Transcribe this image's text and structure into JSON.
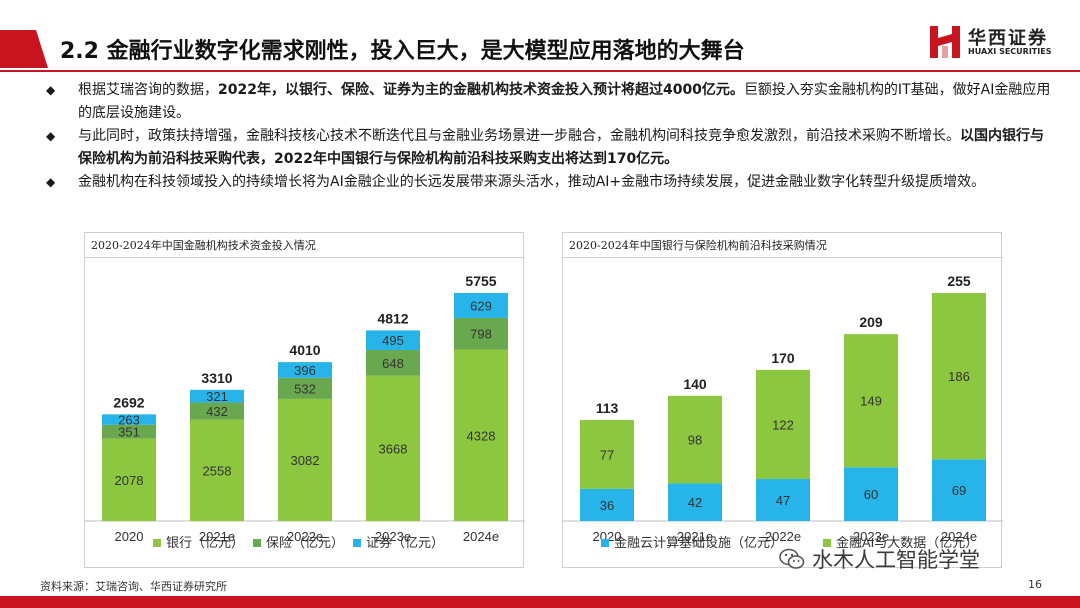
{
  "header": {
    "title": "2.2 金融行业数字化需求刚性，投入巨大，是大模型应用落地的大舞台",
    "logo_cn": "华西证券",
    "logo_en": "HUAXI SECURITIES"
  },
  "bullets": [
    {
      "parts": [
        {
          "text": "根据艾瑞咨询的数据，",
          "bold": false
        },
        {
          "text": "2022年，以银行、保险、证券为主的金融机构技术资金投入预计将超过4000亿元。",
          "bold": true
        },
        {
          "text": "巨额投入夯实金融机构的IT基础，做好AI金融应用的底层设施建设。",
          "bold": false
        }
      ]
    },
    {
      "parts": [
        {
          "text": "与此同时，政策扶持增强，金融科技核心技术不断迭代且与金融业务场景进一步融合，金融机构间科技竞争愈发激烈，前沿技术采购不断增长。",
          "bold": false
        },
        {
          "text": "以国内银行与保险机构为前沿科技采购代表，2022年中国银行与保险机构前沿科技采购支出将达到170亿元。",
          "bold": true
        }
      ]
    },
    {
      "parts": [
        {
          "text": "金融机构在科技领域投入的持续增长将为AI金融企业的长远发展带来源头活水，推动AI+金融市场持续发展，促进金融业数字化转型升级提质增效。",
          "bold": false
        }
      ]
    }
  ],
  "bullet_mark": "◆",
  "chart_data": [
    {
      "type": "bar",
      "stacked": true,
      "title": "2020-2024年中国金融机构技术资金投入情况",
      "categories": [
        "2020",
        "2021e",
        "2022e",
        "2023e",
        "2024e"
      ],
      "series": [
        {
          "name": "银行（亿元）",
          "values": [
            2078,
            2558,
            3082,
            3668,
            4328
          ],
          "color": "#8dc63f"
        },
        {
          "name": "保险（亿元）",
          "values": [
            351,
            432,
            532,
            648,
            798
          ],
          "color": "#6aa84f"
        },
        {
          "name": "证券（亿元）",
          "values": [
            263,
            321,
            396,
            495,
            629
          ],
          "color": "#27b4e8"
        }
      ],
      "totals": [
        2692,
        3310,
        4010,
        4812,
        5755
      ],
      "legend_position": "bottom",
      "grid": false
    },
    {
      "type": "bar",
      "stacked": true,
      "title": "2020-2024年中国银行与保险机构前沿科技采购情况",
      "categories": [
        "2020",
        "2021e",
        "2022e",
        "2023e",
        "2024e"
      ],
      "series": [
        {
          "name": "金融云计算基础设施（亿元）",
          "values": [
            36,
            42,
            47,
            60,
            69
          ],
          "color": "#27b4e8"
        },
        {
          "name": "金融AI与大数据（亿元）",
          "values": [
            77,
            98,
            122,
            149,
            186
          ],
          "color": "#8dc63f"
        }
      ],
      "totals": [
        113,
        140,
        170,
        209,
        255
      ],
      "legend_position": "bottom",
      "grid": false
    }
  ],
  "footer": {
    "source": "资料来源：艾瑞咨询、华西证券研究所",
    "page": "16",
    "watermark": "水木人工智能学堂"
  }
}
